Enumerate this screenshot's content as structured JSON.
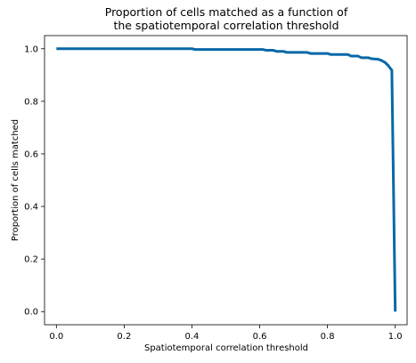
{
  "chart_data": {
    "type": "line",
    "title_lines": [
      "Proportion of cells matched as a function of",
      "the spatiotemporal correlation threshold"
    ],
    "xlabel": "Spatiotemporal correlation threshold",
    "ylabel": "Proportion of cells matched",
    "xlim": [
      -0.035,
      1.035
    ],
    "ylim": [
      -0.05,
      1.05
    ],
    "xticks": [
      0.0,
      0.2,
      0.4,
      0.6,
      0.8,
      1.0
    ],
    "xtick_labels": [
      "0.0",
      "0.2",
      "0.4",
      "0.6",
      "0.8",
      "1.0"
    ],
    "yticks": [
      0.0,
      0.2,
      0.4,
      0.6,
      0.8,
      1.0
    ],
    "ytick_labels": [
      "0.0",
      "0.2",
      "0.4",
      "0.6",
      "0.8",
      "1.0"
    ],
    "grid": false,
    "series": [
      {
        "color": "#0868a8",
        "x": [
          0.0,
          0.4,
          0.41,
          0.61,
          0.62,
          0.64,
          0.65,
          0.67,
          0.68,
          0.74,
          0.75,
          0.8,
          0.81,
          0.86,
          0.87,
          0.89,
          0.9,
          0.92,
          0.93,
          0.95,
          0.96,
          0.97,
          0.98,
          0.99,
          1.0
        ],
        "y": [
          1.0,
          1.0,
          0.997,
          0.997,
          0.994,
          0.994,
          0.99,
          0.99,
          0.986,
          0.986,
          0.982,
          0.982,
          0.978,
          0.978,
          0.972,
          0.972,
          0.966,
          0.966,
          0.962,
          0.96,
          0.955,
          0.948,
          0.935,
          0.918,
          0.0
        ]
      }
    ]
  }
}
